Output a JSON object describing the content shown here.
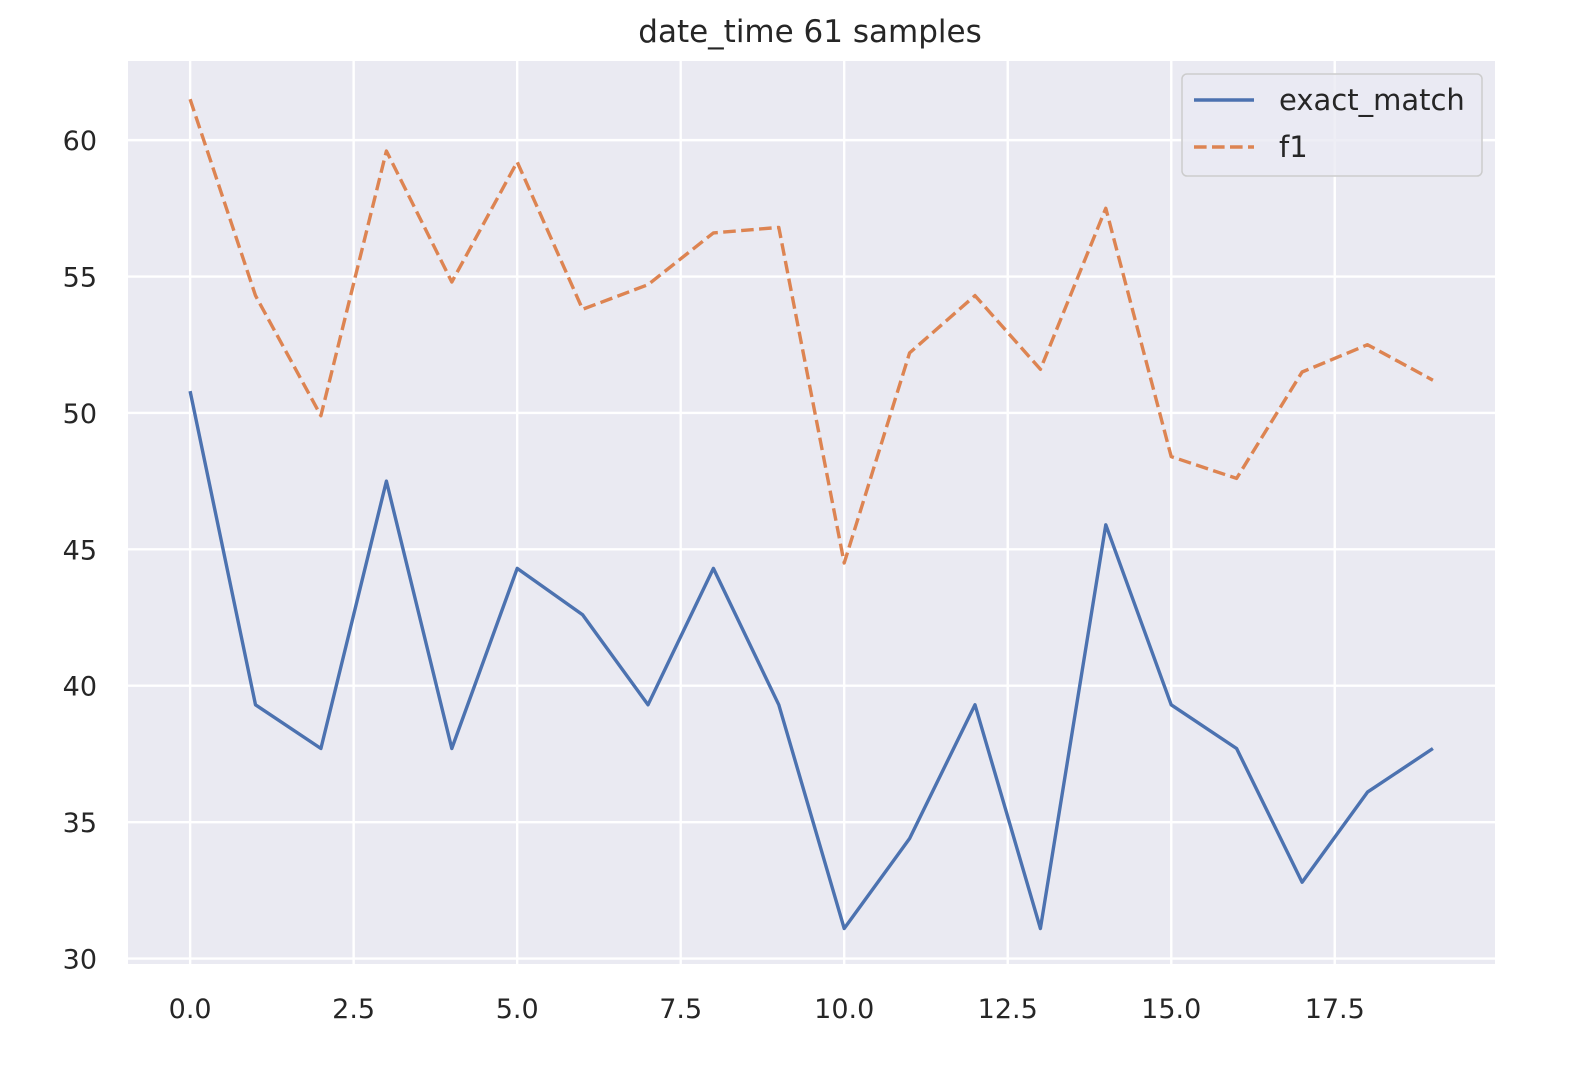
{
  "chart_data": {
    "type": "line",
    "title": "date_time 61 samples",
    "xlabel": "",
    "ylabel": "",
    "x": [
      0,
      1,
      2,
      3,
      4,
      5,
      6,
      7,
      8,
      9,
      10,
      11,
      12,
      13,
      14,
      15,
      16,
      17,
      18,
      19
    ],
    "series": [
      {
        "name": "exact_match",
        "color": "#4c72b0",
        "line_style": "solid",
        "values": [
          50.8,
          39.3,
          37.7,
          47.5,
          37.7,
          44.3,
          42.6,
          39.3,
          44.3,
          39.3,
          31.1,
          34.4,
          39.3,
          31.1,
          45.9,
          39.3,
          37.7,
          32.8,
          36.1,
          37.7
        ]
      },
      {
        "name": "f1",
        "color": "#dd8452",
        "line_style": "dashed",
        "values": [
          61.5,
          54.3,
          49.9,
          59.6,
          54.8,
          59.2,
          53.8,
          54.7,
          56.6,
          56.8,
          44.5,
          52.2,
          54.3,
          51.6,
          57.5,
          48.4,
          47.6,
          51.5,
          52.5,
          51.2
        ]
      }
    ],
    "xlim": [
      -0.95,
      19.95
    ],
    "ylim": [
      29.8,
      62.9
    ],
    "xticks": [
      "0.0",
      "2.5",
      "5.0",
      "7.5",
      "10.0",
      "12.5",
      "15.0",
      "17.5"
    ],
    "xtick_values": [
      0,
      2.5,
      5,
      7.5,
      10,
      12.5,
      15,
      17.5
    ],
    "yticks": [
      "30",
      "35",
      "40",
      "45",
      "50",
      "55",
      "60"
    ],
    "ytick_values": [
      30,
      35,
      40,
      45,
      50,
      55,
      60
    ],
    "grid": true,
    "legend_position": "top-right",
    "background_color": "#eaeaf2"
  }
}
